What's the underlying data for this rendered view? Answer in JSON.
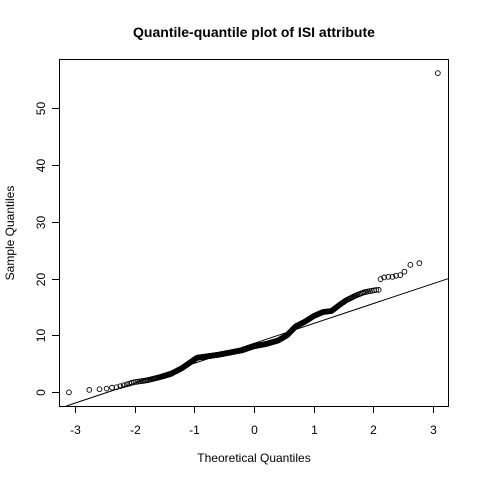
{
  "chart_data": {
    "type": "scatter",
    "title": "Quantile-quantile plot of ISI attribute",
    "xlabel": "Theoretical Quantiles",
    "ylabel": "Sample Quantiles",
    "xlim": [
      -3.25,
      3.25
    ],
    "ylim": [
      -2.4,
      58.4
    ],
    "x_ticks": [
      -3,
      -2,
      -1,
      0,
      1,
      2,
      3
    ],
    "y_ticks": [
      0,
      10,
      20,
      30,
      40,
      50
    ],
    "x_tick_labels": [
      "-3",
      "-2",
      "-1",
      "0",
      "1",
      "2",
      "3"
    ],
    "y_tick_labels": [
      "0",
      "10",
      "20",
      "30",
      "40",
      "50"
    ],
    "grid": false,
    "reference_line": {
      "intercept": 8.6,
      "slope": 3.5
    },
    "anchors": [
      [
        -3.1,
        0
      ],
      [
        -2.8,
        0.4
      ],
      [
        -2.65,
        0.5
      ],
      [
        -2.5,
        0.6
      ],
      [
        -2.4,
        0.8
      ],
      [
        -2.3,
        0.9
      ],
      [
        -2.2,
        1.2
      ],
      [
        -2.1,
        1.5
      ],
      [
        -2.0,
        1.8
      ],
      [
        -1.8,
        2.1
      ],
      [
        -1.6,
        2.6
      ],
      [
        -1.4,
        3.2
      ],
      [
        -1.2,
        4.3
      ],
      [
        -1.05,
        5.4
      ],
      [
        -0.95,
        6.1
      ],
      [
        -0.8,
        6.3
      ],
      [
        -0.6,
        6.6
      ],
      [
        -0.4,
        7.0
      ],
      [
        -0.2,
        7.4
      ],
      [
        0.0,
        8.1
      ],
      [
        0.2,
        8.5
      ],
      [
        0.4,
        9.1
      ],
      [
        0.55,
        10.0
      ],
      [
        0.7,
        11.6
      ],
      [
        0.85,
        12.4
      ],
      [
        1.0,
        13.4
      ],
      [
        1.15,
        14.1
      ],
      [
        1.3,
        14.3
      ],
      [
        1.45,
        15.5
      ],
      [
        1.55,
        16.2
      ],
      [
        1.7,
        17.0
      ],
      [
        1.85,
        17.6
      ],
      [
        2.0,
        17.9
      ],
      [
        2.05,
        18.0
      ]
    ],
    "upper_tail": [
      [
        2.12,
        19.9
      ],
      [
        2.18,
        20.2
      ],
      [
        2.25,
        20.3
      ],
      [
        2.32,
        20.3
      ],
      [
        2.38,
        20.5
      ],
      [
        2.45,
        20.6
      ],
      [
        2.52,
        21.2
      ],
      [
        2.62,
        22.4
      ],
      [
        2.77,
        22.7
      ],
      [
        3.08,
        56.1
      ]
    ],
    "n_points": 517
  }
}
